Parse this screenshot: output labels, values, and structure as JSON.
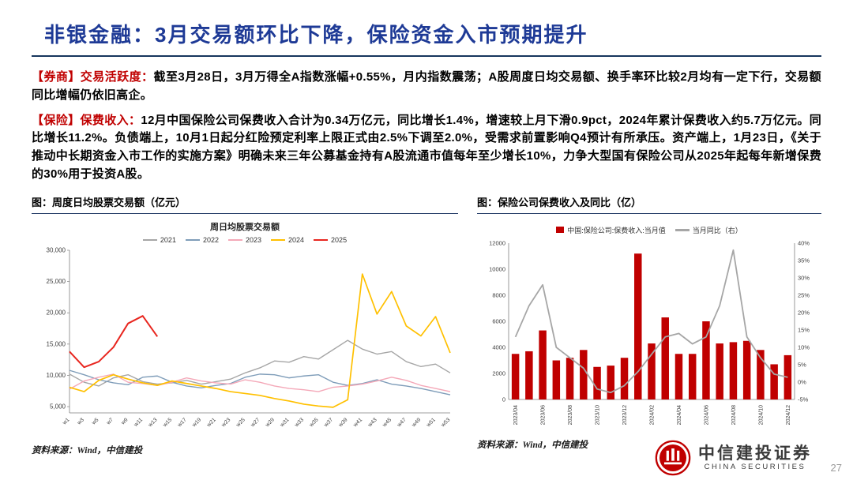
{
  "title": "非银金融：3月交易额环比下降，保险资金入市预期提升",
  "paragraphs": [
    {
      "lead": "【券商】交易活跃度：",
      "text": "截至3月28日，3月万得全A指数涨幅+0.55%，月内指数震荡；A股周度日均交易额、换手率环比较2月均有一定下行，交易额同比增幅仍依旧高企。"
    },
    {
      "lead": "【保险】保费收入：",
      "text": "12月中国保险公司保费收入合计为0.34万亿元，同比增长1.4%，增速较上月下滑0.9pct，2024年累计保费收入约5.7万亿元。同比增长11.2%。负债端上，10月1日起分红险预定利率上限正式由2.5%下调至2.0%，受需求前置影响Q4预计有所承压。资产端上，1月23日，《关于推动中长期资金入市工作的实施方案》明确未来三年公募基金持有A股流通市值每年至少增长10%，力争大型国有保险公司从2025年起每年新增保费的30%用于投资A股。"
    }
  ],
  "colors": {
    "title_blue": "#1e3a96",
    "divider_navy": "#17365d",
    "accent_red": "#c00000"
  },
  "logo": {
    "cn": "中信建投证券",
    "en": "CHINA SECURITIES"
  },
  "page_number": "27",
  "chart_data": [
    {
      "type": "line",
      "caption": "图：周度日均股票交易额（亿元）",
      "title": "周日均股票交易额",
      "source": "资料来源：Wind，中信建投",
      "ylim": [
        4000,
        30000
      ],
      "yticks": [
        5000,
        10000,
        15000,
        20000,
        25000,
        30000
      ],
      "x": [
        "w1",
        "w3",
        "w5",
        "w7",
        "w9",
        "w11",
        "w13",
        "w15",
        "w17",
        "w19",
        "w21",
        "w23",
        "w25",
        "w27",
        "w29",
        "w31",
        "w33",
        "w35",
        "w37",
        "w39",
        "w41",
        "w43",
        "w45",
        "w47",
        "w49",
        "w51",
        "w53"
      ],
      "series": [
        {
          "name": "2021",
          "color": "#a6a6a6",
          "stroke_width": 1.4,
          "values": [
            10200,
            8900,
            8300,
            9600,
            10100,
            9000,
            8600,
            8800,
            9200,
            8600,
            9000,
            9400,
            10400,
            11200,
            12300,
            12100,
            13000,
            12600,
            14100,
            15600,
            14200,
            13400,
            13800,
            12200,
            11400,
            11800,
            10400
          ]
        },
        {
          "name": "2022",
          "color": "#7f9db9",
          "stroke_width": 1.4,
          "values": [
            10800,
            10100,
            9300,
            8800,
            8500,
            9700,
            9900,
            8900,
            8300,
            8000,
            8400,
            8700,
            9700,
            10200,
            10100,
            9600,
            9900,
            10100,
            8900,
            8400,
            8700,
            9300,
            8600,
            8300,
            7900,
            7400,
            6900
          ]
        },
        {
          "name": "2023",
          "color": "#f4a8b8",
          "stroke_width": 1.4,
          "values": [
            7800,
            9100,
            9700,
            10200,
            8900,
            8700,
            8400,
            8900,
            9600,
            9100,
            8800,
            8600,
            9300,
            8900,
            8300,
            7900,
            7700,
            7400,
            8100,
            8300,
            8600,
            9100,
            9700,
            9200,
            8400,
            7900,
            7400
          ]
        },
        {
          "name": "2024",
          "color": "#ffc000",
          "stroke_width": 1.7,
          "values": [
            8100,
            7400,
            9200,
            10100,
            9400,
            8800,
            8400,
            9100,
            8700,
            8300,
            7900,
            7400,
            7100,
            6800,
            6300,
            5900,
            5400,
            5100,
            4900,
            6100,
            26200,
            19800,
            23400,
            17900,
            16300,
            19400,
            13600
          ]
        },
        {
          "name": "2025",
          "color": "#e8261f",
          "stroke_width": 2,
          "values": [
            13800,
            11300,
            12200,
            14500,
            18300,
            19500,
            16200,
            null,
            null,
            null,
            null,
            null,
            null,
            null,
            null,
            null,
            null,
            null,
            null,
            null,
            null,
            null,
            null,
            null,
            null,
            null,
            null
          ]
        }
      ]
    },
    {
      "type": "bar+line",
      "caption": "图：保险公司保费收入及同比（亿）",
      "source": "资料来源：Wind，中信建投",
      "ylim_left": [
        0,
        12000
      ],
      "yticks_left": [
        0,
        2000,
        4000,
        6000,
        8000,
        10000,
        12000
      ],
      "ylim_right": [
        -5,
        40
      ],
      "yticks_right": [
        -5,
        0,
        5,
        10,
        15,
        20,
        25,
        30,
        35,
        40
      ],
      "categories": [
        "2023/04",
        "2023/05",
        "2023/06",
        "2023/07",
        "2023/08",
        "2023/09",
        "2023/10",
        "2023/11",
        "2023/12",
        "2024/01",
        "2024/02",
        "2024/03",
        "2024/04",
        "2024/05",
        "2024/06",
        "2024/07",
        "2024/08",
        "2024/09",
        "2024/10",
        "2024/11",
        "2024/12"
      ],
      "bar": {
        "name": "中国:保险公司:保费收入:当月值",
        "color": "#c00000",
        "values": [
          3500,
          3700,
          5300,
          3000,
          3200,
          3800,
          2500,
          2600,
          3200,
          11200,
          4300,
          6300,
          3500,
          3500,
          6000,
          4300,
          4400,
          4500,
          3800,
          2700,
          3400
        ]
      },
      "line": {
        "name": "当月同比（右）",
        "color": "#a6a6a6",
        "values": [
          13,
          22,
          28,
          10,
          7,
          4,
          -2,
          -3,
          -1,
          3,
          8,
          13,
          14,
          11,
          13,
          22,
          38,
          13,
          7,
          2.3,
          1.4
        ]
      }
    }
  ]
}
